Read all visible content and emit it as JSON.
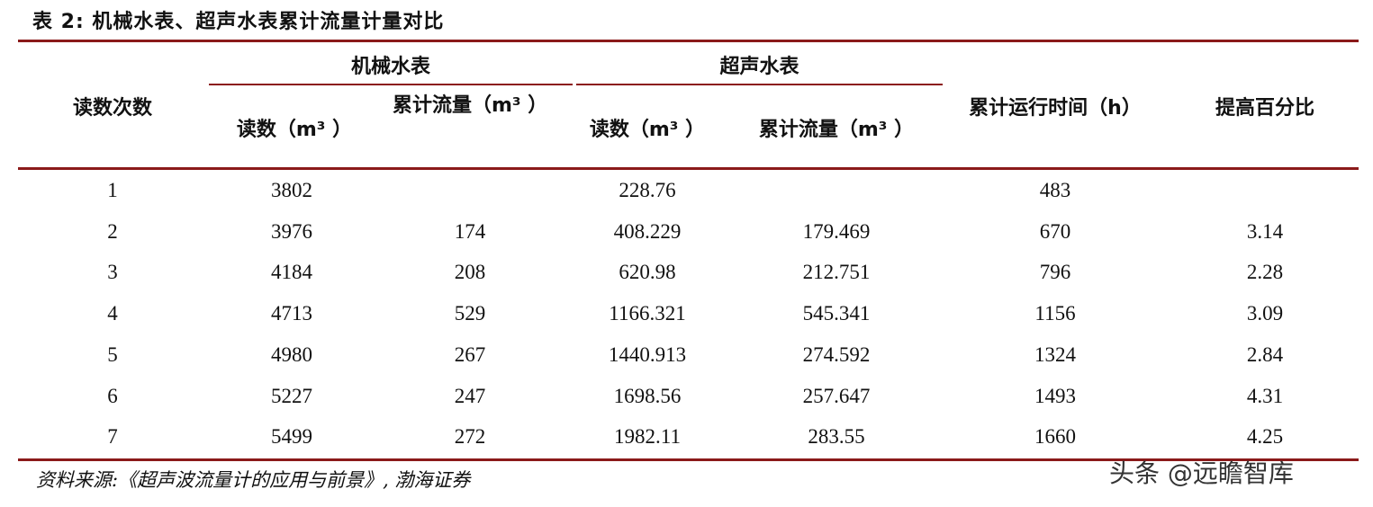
{
  "title": "表 2:  机械水表、超声水表累计流量计量对比",
  "headers": {
    "reading_count": "读数次数",
    "mech_group": "机械水表",
    "ultra_group": "超声水表",
    "mech_reading": "读数（m³  ）",
    "mech_flow": "累计流量（m³  ）",
    "ultra_reading": "读数（m³  ）",
    "ultra_flow": "累计流量（m³  ）",
    "runtime": "累计运行时间（h）",
    "improve": "提高百分比"
  },
  "rows": [
    {
      "n": "1",
      "mr": "3802",
      "mf": "",
      "ur": "228.76",
      "uf": "",
      "t": "483",
      "p": ""
    },
    {
      "n": "2",
      "mr": "3976",
      "mf": "174",
      "ur": "408.229",
      "uf": "179.469",
      "t": "670",
      "p": "3.14"
    },
    {
      "n": "3",
      "mr": "4184",
      "mf": "208",
      "ur": "620.98",
      "uf": "212.751",
      "t": "796",
      "p": "2.28"
    },
    {
      "n": "4",
      "mr": "4713",
      "mf": "529",
      "ur": "1166.321",
      "uf": "545.341",
      "t": "1156",
      "p": "3.09"
    },
    {
      "n": "5",
      "mr": "4980",
      "mf": "267",
      "ur": "1440.913",
      "uf": "274.592",
      "t": "1324",
      "p": "2.84"
    },
    {
      "n": "6",
      "mr": "5227",
      "mf": "247",
      "ur": "1698.56",
      "uf": "257.647",
      "t": "1493",
      "p": "4.31"
    },
    {
      "n": "7",
      "mr": "5499",
      "mf": "272",
      "ur": "1982.11",
      "uf": "283.55",
      "t": "1660",
      "p": "4.25"
    }
  ],
  "source": "资料来源:《超声波流量计的应用与前景》, 渤海证券",
  "watermark": "头条 @远瞻智库"
}
